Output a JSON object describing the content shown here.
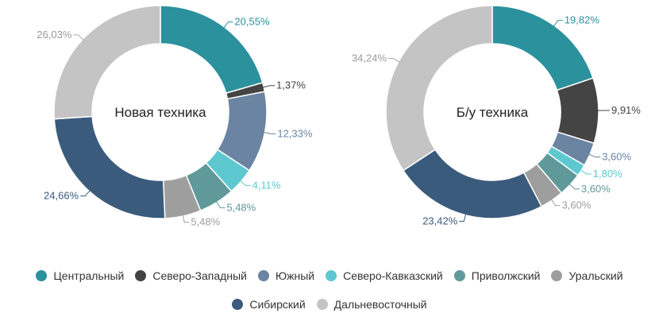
{
  "chart_data": [
    {
      "type": "donut",
      "center_label": "Новая техника",
      "slices": [
        {
          "name": "Центральный",
          "value": 20.55,
          "label": "20,55%",
          "color": "#2b919d"
        },
        {
          "name": "Северо-Западный",
          "value": 1.37,
          "label": "1,37%",
          "color": "#444444"
        },
        {
          "name": "Южный",
          "value": 12.33,
          "label": "12,33%",
          "color": "#6a84a2"
        },
        {
          "name": "Северо-Кавказский",
          "value": 4.11,
          "label": "4,11%",
          "color": "#5ec8d1"
        },
        {
          "name": "Приволжский",
          "value": 5.48,
          "label": "5,48%",
          "color": "#5f9999"
        },
        {
          "name": "Уральский",
          "value": 5.48,
          "label": "5,48%",
          "color": "#9e9e9e"
        },
        {
          "name": "Сибирский",
          "value": 24.66,
          "label": "24,66%",
          "color": "#3b5b7c"
        },
        {
          "name": "Дальневосточный",
          "value": 26.03,
          "label": "26,03%",
          "color": "#c4c4c4"
        }
      ]
    },
    {
      "type": "donut",
      "center_label": "Б/у техника",
      "slices": [
        {
          "name": "Центральный",
          "value": 19.82,
          "label": "19,82%",
          "color": "#2b919d"
        },
        {
          "name": "Северо-Западный",
          "value": 9.91,
          "label": "9,91%",
          "color": "#444444"
        },
        {
          "name": "Южный",
          "value": 3.6,
          "label": "3,60%",
          "color": "#6a84a2"
        },
        {
          "name": "Северо-Кавказский",
          "value": 1.8,
          "label": "1,80%",
          "color": "#5ec8d1"
        },
        {
          "name": "Приволжский",
          "value": 3.6,
          "label": "3,60%",
          "color": "#5f9999"
        },
        {
          "name": "Уральский",
          "value": 3.6,
          "label": "3,60%",
          "color": "#9e9e9e"
        },
        {
          "name": "Сибирский",
          "value": 23.42,
          "label": "23,42%",
          "color": "#3b5b7c"
        },
        {
          "name": "Дальневосточный",
          "value": 34.24,
          "label": "34,24%",
          "color": "#c4c4c4"
        }
      ]
    }
  ],
  "legend": {
    "placement": "bottom",
    "items": [
      {
        "label": "Центральный",
        "color": "#2b919d"
      },
      {
        "label": "Северо-Западный",
        "color": "#444444"
      },
      {
        "label": "Южный",
        "color": "#6a84a2"
      },
      {
        "label": "Северо-Кавказский",
        "color": "#5ec8d1"
      },
      {
        "label": "Приволжский",
        "color": "#5f9999"
      },
      {
        "label": "Уральский",
        "color": "#9e9e9e"
      },
      {
        "label": "Сибирский",
        "color": "#3b5b7c"
      },
      {
        "label": "Дальневосточный",
        "color": "#c4c4c4"
      }
    ]
  }
}
